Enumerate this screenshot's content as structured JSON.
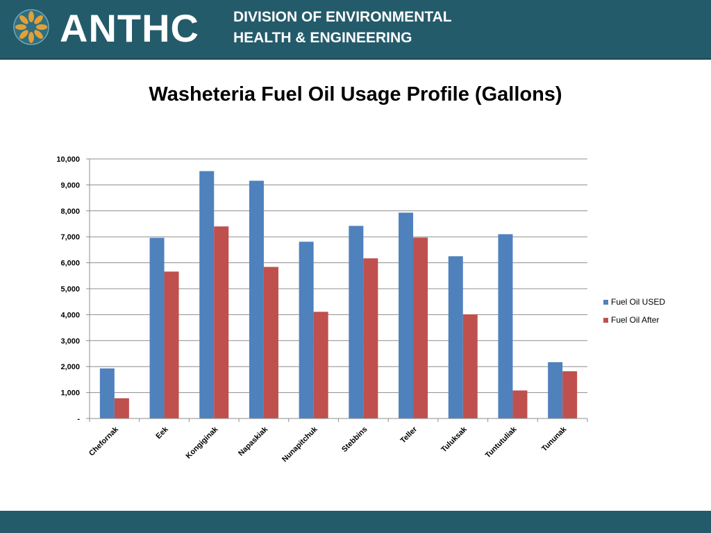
{
  "header": {
    "org_name": "ANTHC",
    "division_line1": "DIVISION OF ENVIRONMENTAL",
    "division_line2": "HEALTH & ENGINEERING",
    "logo": "anthc-seal-icon",
    "background_color": "#245b6b"
  },
  "slide": {
    "title": "Washeteria Fuel Oil Usage Profile (Gallons)"
  },
  "chart_data": {
    "type": "bar",
    "title": "Washeteria Fuel Oil Usage Profile (Gallons)",
    "xlabel": "",
    "ylabel": "",
    "ylim": [
      0,
      10000
    ],
    "yticks": [
      "-",
      "1,000",
      "2,000",
      "3,000",
      "4,000",
      "5,000",
      "6,000",
      "7,000",
      "8,000",
      "9,000",
      "10,000"
    ],
    "grid": true,
    "legend_position": "right",
    "categories": [
      "Chefornak",
      "Eek",
      "Kongiginak",
      "Napaskiak",
      "Nunapitchuk",
      "Stebbins",
      "Teller",
      "Tuluksak",
      "Tuntutuliak",
      "Tununak"
    ],
    "series": [
      {
        "name": "Fuel Oil USED",
        "color": "#4f81bd",
        "values": [
          1930,
          6960,
          9530,
          9160,
          6810,
          7420,
          7930,
          6250,
          7100,
          2170
        ]
      },
      {
        "name": "Fuel Oil After",
        "color": "#c0504d",
        "values": [
          780,
          5660,
          7400,
          5840,
          4110,
          6170,
          6970,
          4010,
          1080,
          1820
        ]
      }
    ]
  }
}
